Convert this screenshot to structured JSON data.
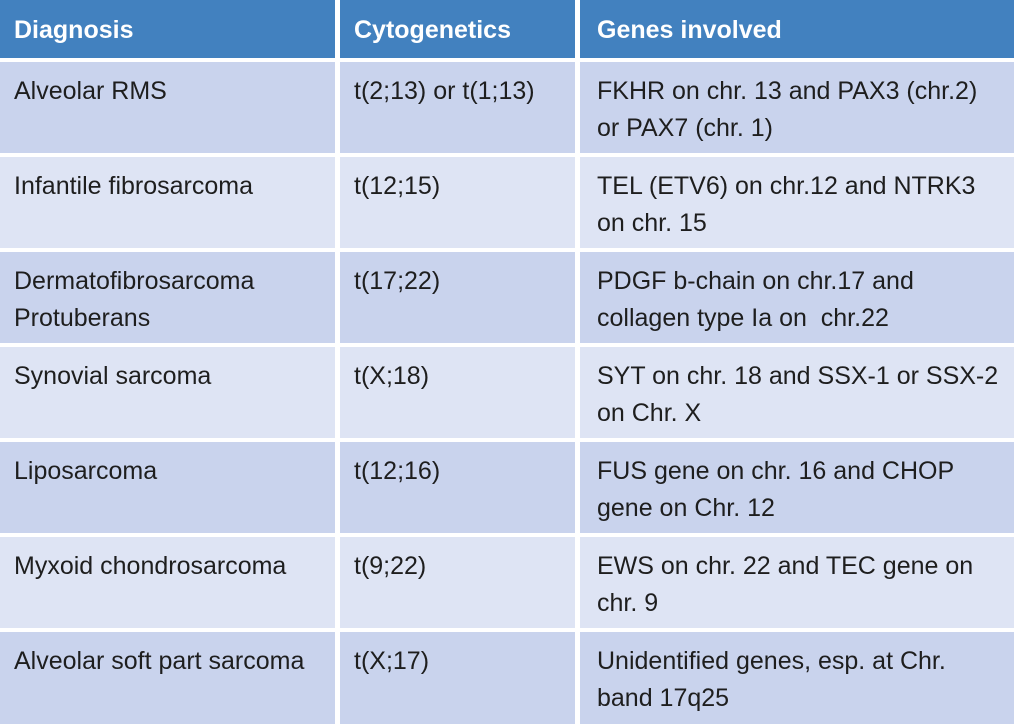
{
  "colors": {
    "header_bg": "#4281BF",
    "header_text": "#FFFFFF",
    "row_odd_bg": "#C9D3ED",
    "row_even_bg": "#DEE4F4",
    "body_text": "#1E1E1E",
    "grid_line": "#FFFFFF"
  },
  "table": {
    "columns": [
      {
        "label": "Diagnosis"
      },
      {
        "label": "Cytogenetics"
      },
      {
        "label": "Genes involved"
      }
    ],
    "rows": [
      {
        "diagnosis": "Alveolar RMS",
        "cytogenetics": "t(2;13) or t(1;13)",
        "genes": "FKHR on chr. 13 and PAX3 (chr.2) or PAX7 (chr. 1)"
      },
      {
        "diagnosis": "Infantile fibrosarcoma",
        "cytogenetics": "t(12;15)",
        "genes": "TEL (ETV6) on chr.12 and NTRK3 on chr. 15"
      },
      {
        "diagnosis": "Dermatofibrosarcoma Protuberans",
        "cytogenetics": "t(17;22)",
        "genes": "PDGF b-chain on chr.17 and collagen type Ia on  chr.22"
      },
      {
        "diagnosis": "Synovial sarcoma",
        "cytogenetics": "t(X;18)",
        "genes": "SYT on chr. 18 and SSX-1 or SSX-2 on Chr. X"
      },
      {
        "diagnosis": "Liposarcoma",
        "cytogenetics": "t(12;16)",
        "genes": "FUS gene on chr. 16 and CHOP gene on Chr. 12"
      },
      {
        "diagnosis": "Myxoid chondrosarcoma",
        "cytogenetics": "t(9;22)",
        "genes": "EWS on chr. 22 and TEC gene on chr. 9"
      },
      {
        "diagnosis": "Alveolar soft part sarcoma",
        "cytogenetics": "t(X;17)",
        "genes": "Unidentified genes, esp. at Chr. band 17q25"
      }
    ]
  }
}
